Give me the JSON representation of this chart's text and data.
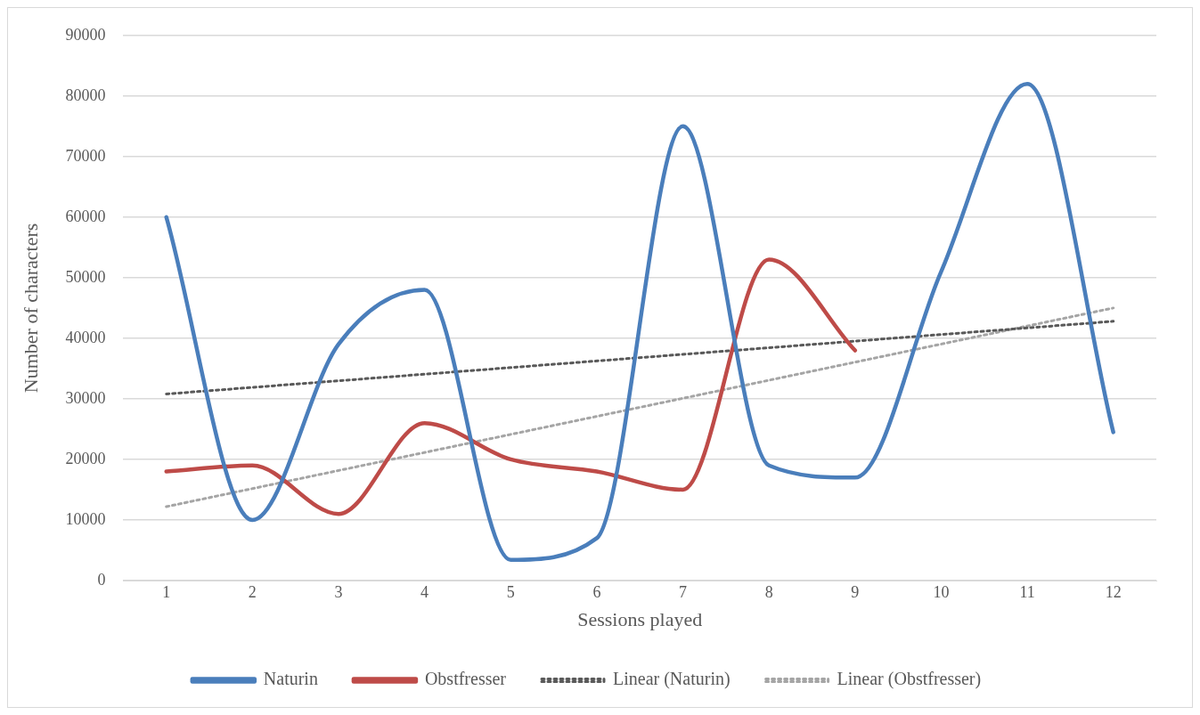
{
  "chart_data": {
    "type": "line",
    "xlabel": "Sessions played",
    "ylabel": "Number of characters",
    "x": [
      1,
      2,
      3,
      4,
      5,
      6,
      7,
      8,
      9,
      10,
      11,
      12
    ],
    "xlim": [
      0.5,
      12.5
    ],
    "xticks": [
      1,
      2,
      3,
      4,
      5,
      6,
      7,
      8,
      9,
      10,
      11,
      12
    ],
    "ylim": [
      0,
      90000
    ],
    "yticks": [
      0,
      10000,
      20000,
      30000,
      40000,
      50000,
      60000,
      70000,
      80000,
      90000
    ],
    "grid": "y",
    "legend": "bottom",
    "marker": "none",
    "series": [
      {
        "name": "Naturin",
        "color": "#4a7ebb",
        "values": [
          60000,
          10000,
          39000,
          48000,
          3400,
          7000,
          75000,
          19000,
          17000,
          51000,
          82000,
          24500
        ]
      },
      {
        "name": "Obstfresser",
        "color": "#be4b48",
        "values": [
          18000,
          19000,
          11000,
          26000,
          20000,
          18000,
          15000,
          53000,
          38000,
          null,
          null,
          null
        ]
      },
      {
        "name": "Linear (Naturin)",
        "type": "line",
        "color": "#595959",
        "line_style": "dotted",
        "values": [
          30800,
          null,
          null,
          null,
          null,
          null,
          null,
          null,
          null,
          null,
          null,
          42800
        ]
      },
      {
        "name": "Linear (Obstfresser)",
        "type": "line",
        "color": "#a5a5a5",
        "line_style": "dotted",
        "values": [
          12200,
          null,
          null,
          null,
          null,
          null,
          null,
          null,
          null,
          null,
          null,
          45000
        ]
      }
    ]
  }
}
